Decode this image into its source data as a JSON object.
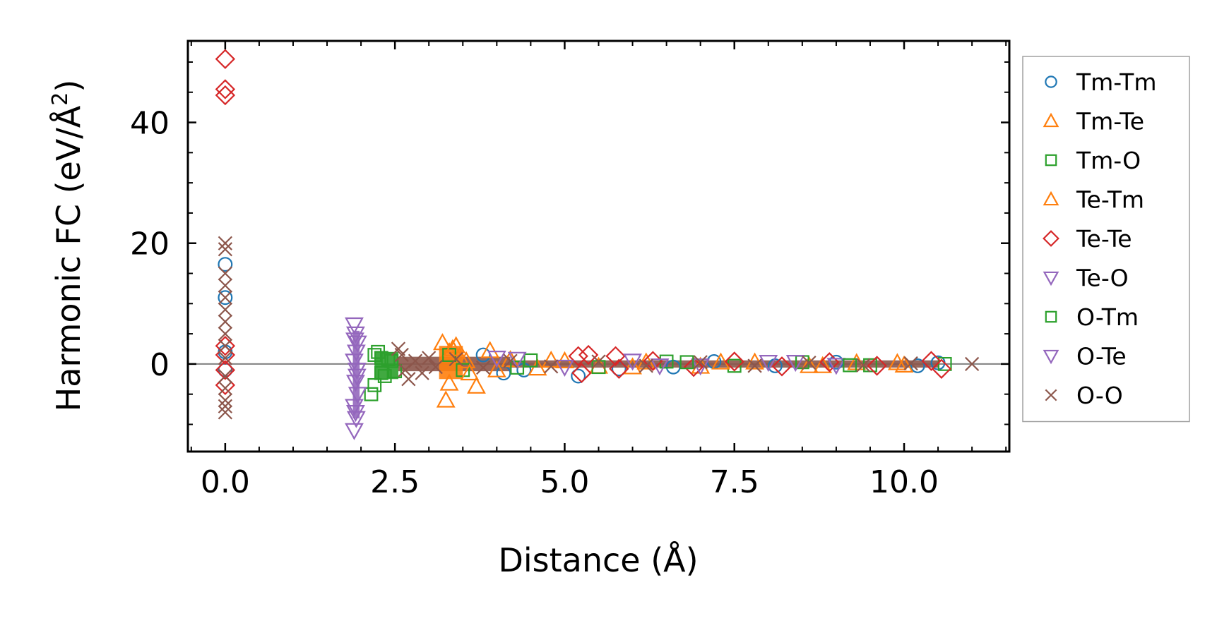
{
  "chart_data": {
    "type": "scatter",
    "xlabel": "Distance (Å)",
    "ylabel_prefix": "Harmonic FC (eV/Å",
    "ylabel_sup": "2",
    "ylabel_suffix": ")",
    "xlim": [
      -0.55,
      11.55
    ],
    "ylim": [
      -14.5,
      53.5
    ],
    "xticks": [
      0.0,
      2.5,
      5.0,
      7.5,
      10.0
    ],
    "xtick_labels": [
      "0.0",
      "2.5",
      "5.0",
      "7.5",
      "10.0"
    ],
    "yticks": [
      0,
      20,
      40
    ],
    "ytick_labels": [
      "0",
      "20",
      "40"
    ],
    "reference_line_y": 0,
    "legend_position": "outside-right",
    "series": [
      {
        "name": "Tm-Tm",
        "marker": "circle",
        "color": "#1f77b4",
        "points": [
          [
            0,
            16.5
          ],
          [
            0,
            11
          ],
          [
            0,
            2
          ],
          [
            0,
            -1
          ],
          [
            3.8,
            1.5
          ],
          [
            4.1,
            -1.5
          ],
          [
            4.4,
            -1
          ],
          [
            5.2,
            -2
          ],
          [
            5.8,
            -0.8
          ],
          [
            6.6,
            -0.5
          ],
          [
            7.2,
            0.4
          ],
          [
            8.1,
            -0.3
          ],
          [
            9.0,
            0.3
          ],
          [
            10.2,
            -0.3
          ],
          [
            10.5,
            0.2
          ]
        ]
      },
      {
        "name": "Tm-Te",
        "marker": "triangle-up",
        "color": "#ff7f0e",
        "points": [
          [
            3.2,
            3.5
          ],
          [
            3.3,
            2.0
          ],
          [
            3.4,
            3.0
          ],
          [
            3.45,
            1.2
          ],
          [
            3.55,
            0.5
          ],
          [
            3.25,
            -6.0
          ],
          [
            3.3,
            -3.2
          ],
          [
            3.7,
            -3.7
          ],
          [
            3.9,
            2.2
          ],
          [
            4.0,
            -1.0
          ],
          [
            4.2,
            0.7
          ],
          [
            4.6,
            -0.7
          ],
          [
            5.0,
            0.5
          ],
          [
            5.5,
            -0.4
          ],
          [
            6.2,
            0.3
          ],
          [
            7.0,
            -0.4
          ],
          [
            7.8,
            0.3
          ],
          [
            8.6,
            -0.3
          ],
          [
            9.3,
            0.2
          ],
          [
            10.0,
            -0.2
          ]
        ]
      },
      {
        "name": "Tm-O",
        "marker": "square",
        "color": "#2ca02c",
        "points": [
          [
            2.15,
            -5.0
          ],
          [
            2.2,
            -3.5
          ],
          [
            2.25,
            2.0
          ],
          [
            2.3,
            1.0
          ],
          [
            2.35,
            -2.0
          ],
          [
            2.4,
            0.8
          ],
          [
            2.5,
            -1.2
          ],
          [
            3.3,
            1.5
          ],
          [
            3.5,
            -1.0
          ],
          [
            4.5,
            0.6
          ],
          [
            5.5,
            -0.5
          ],
          [
            6.5,
            0.4
          ],
          [
            7.5,
            -0.3
          ],
          [
            8.5,
            0.3
          ],
          [
            9.5,
            -0.2
          ],
          [
            10.6,
            0.0
          ]
        ]
      },
      {
        "name": "Te-Tm",
        "marker": "triangle-up",
        "color": "#ff7f0e",
        "points": [
          [
            3.35,
            2.5
          ],
          [
            3.6,
            -1.5
          ],
          [
            4.8,
            0.6
          ],
          [
            6.0,
            -0.5
          ],
          [
            7.3,
            0.3
          ],
          [
            8.8,
            -0.3
          ],
          [
            9.9,
            0.2
          ]
        ]
      },
      {
        "name": "Te-Te",
        "marker": "diamond",
        "color": "#d62728",
        "points": [
          [
            0,
            50.5
          ],
          [
            0,
            45.5
          ],
          [
            0,
            44.5
          ],
          [
            0,
            3
          ],
          [
            0,
            1.5
          ],
          [
            0,
            -1
          ],
          [
            0,
            -3.5
          ],
          [
            5.2,
            1.3
          ],
          [
            5.25,
            -1.5
          ],
          [
            5.35,
            1.5
          ],
          [
            5.75,
            1.3
          ],
          [
            5.8,
            -0.8
          ],
          [
            6.3,
            0.5
          ],
          [
            6.9,
            -0.5
          ],
          [
            7.5,
            0.4
          ],
          [
            8.2,
            -0.4
          ],
          [
            8.9,
            0.3
          ],
          [
            9.6,
            -0.3
          ],
          [
            10.4,
            0.5
          ],
          [
            10.55,
            -0.8
          ]
        ]
      },
      {
        "name": "Te-O",
        "marker": "triangle-down",
        "color": "#9467bd",
        "points": [
          [
            1.9,
            6.5
          ],
          [
            1.92,
            5.0
          ],
          [
            1.95,
            3.5
          ],
          [
            1.93,
            2.0
          ],
          [
            1.9,
            0.5
          ],
          [
            1.94,
            -1.0
          ],
          [
            1.92,
            -3.0
          ],
          [
            1.95,
            -5.0
          ],
          [
            1.9,
            -7.0
          ],
          [
            1.93,
            -9.0
          ],
          [
            1.9,
            -11.0
          ],
          [
            4.0,
            1.0
          ],
          [
            5.0,
            -0.5
          ],
          [
            6.0,
            0.5
          ],
          [
            7.0,
            -0.3
          ],
          [
            8.0,
            0.3
          ],
          [
            9.0,
            -0.2
          ]
        ]
      },
      {
        "name": "O-Tm",
        "marker": "square",
        "color": "#2ca02c",
        "points": [
          [
            2.2,
            1.5
          ],
          [
            2.3,
            -1.5
          ],
          [
            2.45,
            0.5
          ],
          [
            4.3,
            -0.6
          ],
          [
            6.8,
            0.3
          ],
          [
            9.2,
            -0.2
          ]
        ]
      },
      {
        "name": "O-Te",
        "marker": "triangle-down",
        "color": "#9467bd",
        "points": [
          [
            1.91,
            4.0
          ],
          [
            1.94,
            -2.0
          ],
          [
            1.92,
            -8.0
          ],
          [
            4.3,
            0.8
          ],
          [
            6.4,
            -0.3
          ],
          [
            8.4,
            0.3
          ]
        ]
      },
      {
        "name": "O-O",
        "marker": "x",
        "color": "#8c564b",
        "points": [
          [
            0,
            20
          ],
          [
            0,
            19
          ],
          [
            0,
            15
          ],
          [
            0,
            13
          ],
          [
            0,
            11
          ],
          [
            0,
            9
          ],
          [
            0,
            7
          ],
          [
            0,
            5
          ],
          [
            0,
            3
          ],
          [
            0,
            1
          ],
          [
            0,
            -2
          ],
          [
            0,
            -4
          ],
          [
            0,
            -6
          ],
          [
            0,
            -7
          ],
          [
            0,
            -8
          ],
          [
            2.55,
            2.5
          ],
          [
            2.6,
            1.5
          ],
          [
            2.65,
            -1.0
          ],
          [
            2.7,
            -2.5
          ],
          [
            2.8,
            0.5
          ],
          [
            2.9,
            -1.5
          ],
          [
            3.0,
            1.0
          ],
          [
            3.1,
            -0.5
          ],
          [
            3.4,
            0.8
          ],
          [
            3.8,
            -0.6
          ],
          [
            4.2,
            0.5
          ],
          [
            4.8,
            -0.4
          ],
          [
            5.5,
            0.4
          ],
          [
            6.2,
            -0.3
          ],
          [
            7.0,
            0.3
          ],
          [
            7.8,
            -0.3
          ],
          [
            8.6,
            0.2
          ],
          [
            9.4,
            -0.2
          ],
          [
            10.1,
            0.1
          ],
          [
            11.0,
            0.0
          ]
        ]
      }
    ]
  }
}
